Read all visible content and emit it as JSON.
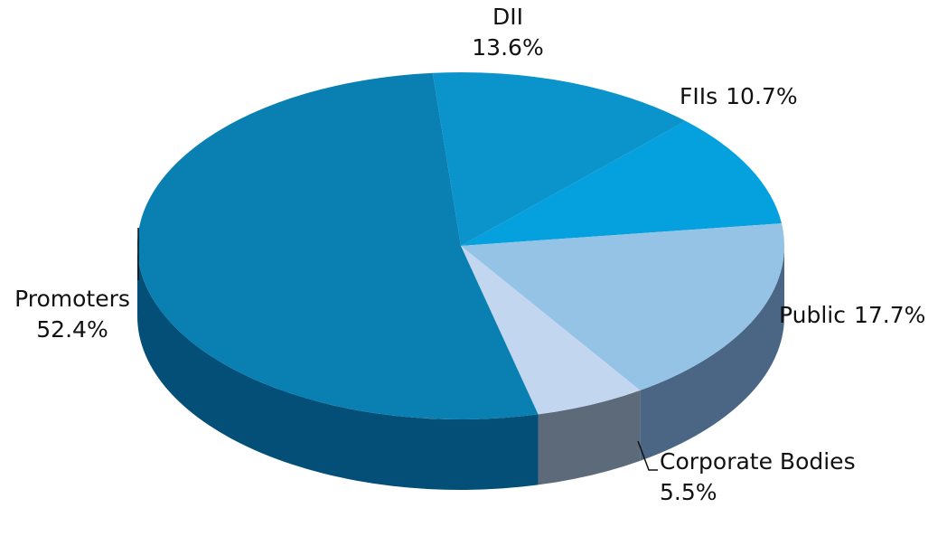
{
  "chart_data": {
    "type": "pie",
    "categories": [
      "DII",
      "FIIs",
      "Public",
      "Corporate Bodies",
      "Promoters"
    ],
    "values": [
      13.6,
      10.7,
      17.7,
      5.5,
      52.4
    ],
    "value_labels": [
      "13.6%",
      "10.7%",
      "17.7%",
      "5.5%",
      "52.4%"
    ],
    "colors": [
      "#0b93cc",
      "#05a0de",
      "#94c3e6",
      "#c3d6ef",
      "#0a80b2"
    ],
    "side_colors": [
      "#066d99",
      "#0479a8",
      "#4a6684",
      "#5c6a79",
      "#034f77"
    ]
  }
}
